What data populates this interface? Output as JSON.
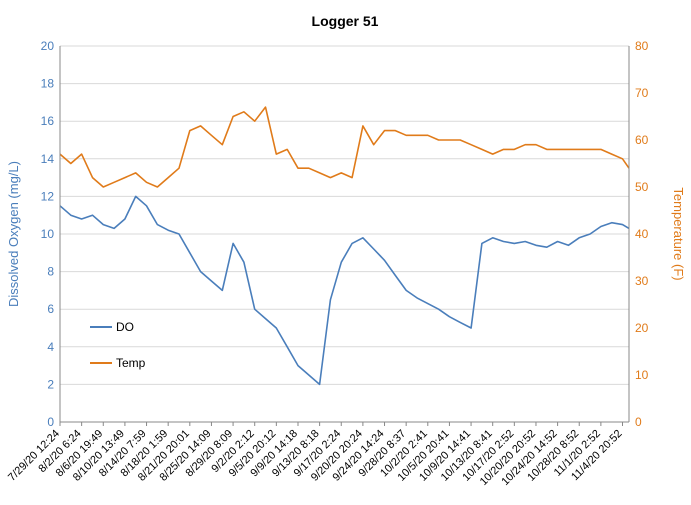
{
  "chart_data": {
    "type": "line",
    "title": "Logger 51",
    "y_left": {
      "label": "Dissolved Oxygen (mg/L)",
      "min": 0,
      "max": 20,
      "step": 2
    },
    "y_right": {
      "label": "Temperature (F)",
      "min": 0,
      "max": 80,
      "step": 10
    },
    "x_tick_labels": [
      "7/29/20 12:24",
      "8/2/20 6:24",
      "8/6/20 19:49",
      "8/10/20 13:49",
      "8/14/20 7:59",
      "8/18/20 1:59",
      "8/21/20 20:01",
      "8/25/20 14:09",
      "8/29/20 8:09",
      "9/2/20 2:12",
      "9/5/20 20:12",
      "9/9/20 14:18",
      "9/13/20 8:18",
      "9/17/20 2:24",
      "9/20/20 20:24",
      "9/24/20 14:24",
      "9/28/20 8:37",
      "10/2/20 2:41",
      "10/5/20 20:41",
      "10/9/20 14:41",
      "10/13/20 8:41",
      "10/17/20 2:52",
      "10/20/20 20:52",
      "10/24/20 14:52",
      "10/28/20 8:52",
      "11/1/20 2:52",
      "11/4/20 20:52"
    ],
    "legend_position": "left-middle, inside plot",
    "grid": "horizontal gridlines at left-axis ticks",
    "series": [
      {
        "name": "DO",
        "axis": "left",
        "color": "#4a7ebb",
        "x": [
          0,
          0.5,
          1,
          1.5,
          2,
          2.5,
          3,
          3.5,
          4,
          4.5,
          5,
          5.5,
          6,
          6.5,
          7,
          7.5,
          8,
          8.5,
          9,
          9.5,
          10,
          10.5,
          11,
          11.5,
          12,
          12.5,
          13,
          13.5,
          14,
          14.5,
          15,
          15.5,
          16,
          16.5,
          17,
          17.5,
          18,
          18.5,
          19,
          19.5,
          20,
          20.5,
          21,
          21.5,
          22,
          22.5,
          23,
          23.5,
          24,
          24.5,
          25,
          25.5,
          26,
          26.3
        ],
        "values": [
          11.5,
          11.0,
          10.8,
          11.0,
          10.5,
          10.3,
          10.8,
          12.0,
          11.5,
          10.5,
          10.2,
          10.0,
          9.0,
          8.0,
          7.5,
          7.0,
          9.5,
          8.5,
          6.0,
          5.5,
          5.0,
          4.0,
          3.0,
          2.5,
          2.0,
          6.5,
          8.5,
          9.5,
          9.8,
          9.2,
          8.6,
          7.8,
          7.0,
          6.6,
          6.3,
          6.0,
          5.6,
          5.3,
          5.0,
          9.5,
          9.8,
          9.6,
          9.5,
          9.6,
          9.4,
          9.3,
          9.6,
          9.4,
          9.8,
          10.0,
          10.4,
          10.6,
          10.5,
          10.3
        ]
      },
      {
        "name": "Temp",
        "axis": "right",
        "color": "#e07b1a",
        "x": [
          0,
          0.5,
          1,
          1.5,
          2,
          2.5,
          3,
          3.5,
          4,
          4.5,
          5,
          5.5,
          6,
          6.5,
          7,
          7.5,
          8,
          8.5,
          9,
          9.5,
          10,
          10.5,
          11,
          11.5,
          12,
          12.5,
          13,
          13.5,
          14,
          14.5,
          15,
          15.5,
          16,
          16.5,
          17,
          17.5,
          18,
          18.5,
          19,
          19.5,
          20,
          20.5,
          21,
          21.5,
          22,
          22.5,
          23,
          23.5,
          24,
          24.5,
          25,
          25.5,
          26,
          26.3
        ],
        "values": [
          57,
          55,
          57,
          52,
          50,
          51,
          52,
          53,
          51,
          50,
          52,
          54,
          62,
          63,
          61,
          59,
          65,
          66,
          64,
          67,
          57,
          58,
          54,
          54,
          53,
          52,
          53,
          52,
          63,
          59,
          62,
          62,
          61,
          61,
          61,
          60,
          60,
          60,
          59,
          58,
          57,
          58,
          58,
          59,
          59,
          58,
          58,
          58,
          58,
          58,
          58,
          57,
          56,
          54
        ]
      }
    ]
  }
}
